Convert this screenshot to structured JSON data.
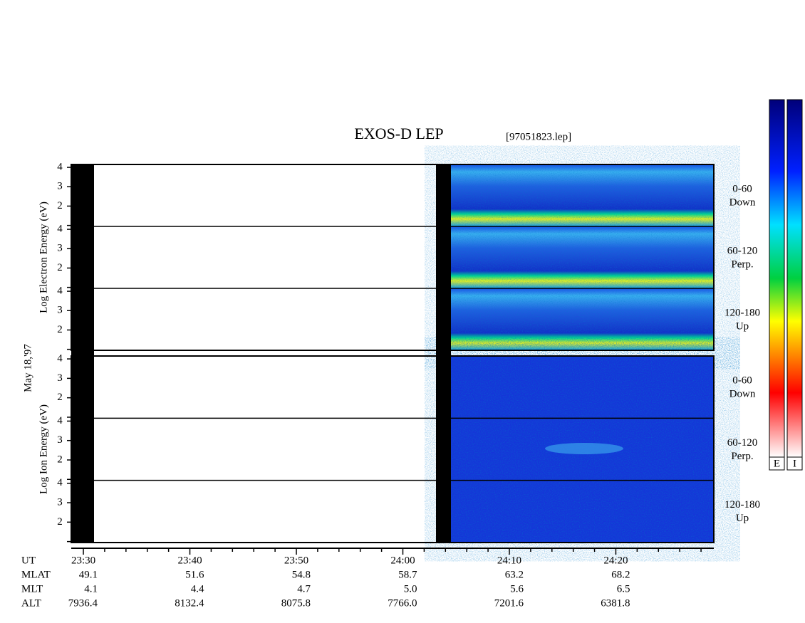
{
  "chart_data": {
    "type": "spectrogram",
    "title": "EXOS-D LEP",
    "file": "[97051823.lep]",
    "date": "May 18,'97",
    "xlim": [
      1408.86,
      1469.2
    ],
    "xticks": [
      {
        "value": 1410,
        "label": "23:30"
      },
      {
        "value": 1420,
        "label": "23:40"
      },
      {
        "value": 1430,
        "label": "23:50"
      },
      {
        "value": 1440,
        "label": "24:00"
      },
      {
        "value": 1450,
        "label": "24:10"
      },
      {
        "value": 1460,
        "label": "24:20"
      }
    ],
    "minor_xticks": [
      1412,
      1414,
      1416,
      1418,
      1422,
      1424,
      1426,
      1428,
      1432,
      1434,
      1436,
      1438,
      1442,
      1444,
      1446,
      1448,
      1452,
      1454,
      1456,
      1458,
      1462,
      1464,
      1466,
      1468
    ],
    "ylim": [
      0.95,
      4.15
    ],
    "yticks": [
      2,
      3,
      4
    ],
    "minor_yticks": [
      1
    ],
    "panels": [
      {
        "ylabel": "Log  Electron  Energy (eV)",
        "subpanels": [
          {
            "angle": "0-60",
            "direction": "Down"
          },
          {
            "angle": "60-120",
            "direction": "Perp."
          },
          {
            "angle": "120-180",
            "direction": "Up"
          }
        ]
      },
      {
        "ylabel": "Log  Ion  Energy (eV)",
        "subpanels": [
          {
            "angle": "0-60",
            "direction": "Down"
          },
          {
            "angle": "60-120",
            "direction": "Perp."
          },
          {
            "angle": "120-180",
            "direction": "Up"
          }
        ]
      }
    ],
    "ephemeris": [
      {
        "label": "UT"
      },
      {
        "label": "MLAT",
        "values": [
          "49.1",
          "51.6",
          "54.8",
          "58.7",
          "63.2",
          "68.2"
        ]
      },
      {
        "label": "MLT",
        "values": [
          "4.1",
          "4.4",
          "4.7",
          "5.0",
          "5.6",
          "6.5"
        ]
      },
      {
        "label": "ALT",
        "values": [
          "7936.4",
          "8132.4",
          "8075.8",
          "7766.0",
          "7201.6",
          "6381.8"
        ]
      }
    ],
    "colorbars": [
      "E",
      "I"
    ]
  }
}
